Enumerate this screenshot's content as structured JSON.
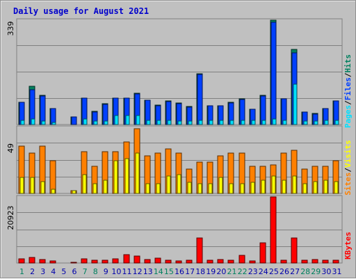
{
  "title": "Daily usage for August 2021",
  "colors": {
    "hits": "#00805f",
    "files": "#0040ff",
    "pages": "#00e0ff",
    "visits": "#ffff00",
    "sites": "#ff8000",
    "kbytes": "#ff0000",
    "weekend": "#00805f",
    "weekday": "#0000aa",
    "separator": "#000000",
    "panel": "#c0c0c0",
    "gridline": "#808080"
  },
  "chart_data": [
    {
      "type": "bar",
      "panel": "hits_files_pages",
      "ymax_label": "339",
      "ylim": [
        0,
        339
      ],
      "legend": [
        "Pages",
        "Files",
        "Hits"
      ],
      "legend_separator": "/",
      "categories": [
        "1",
        "2",
        "3",
        "4",
        "5",
        "6",
        "7",
        "8",
        "9",
        "10",
        "11",
        "12",
        "13",
        "14",
        "15",
        "16",
        "17",
        "18",
        "19",
        "20",
        "21",
        "22",
        "23",
        "24",
        "25",
        "26",
        "27",
        "28",
        "29",
        "30",
        "31"
      ],
      "series": [
        {
          "name": "Hits",
          "values": [
            73,
            124,
            94,
            52,
            0,
            24,
            86,
            42,
            67,
            86,
            86,
            101,
            79,
            63,
            76,
            69,
            59,
            165,
            62,
            61,
            72,
            83,
            50,
            94,
            339,
            84,
            243,
            40,
            36,
            52,
            77
          ]
        },
        {
          "name": "Files",
          "values": [
            72,
            113,
            93,
            51,
            0,
            24,
            86,
            41,
            66,
            85,
            85,
            100,
            78,
            62,
            75,
            68,
            57,
            162,
            61,
            60,
            71,
            82,
            49,
            93,
            333,
            83,
            233,
            40,
            35,
            51,
            76
          ]
        },
        {
          "name": "Pages",
          "values": [
            14,
            17,
            12,
            6,
            0,
            0,
            18,
            12,
            12,
            29,
            30,
            30,
            14,
            13,
            14,
            12,
            12,
            14,
            14,
            13,
            14,
            14,
            13,
            14,
            18,
            14,
            130,
            12,
            12,
            14,
            14
          ]
        }
      ]
    },
    {
      "type": "bar",
      "panel": "visits_sites",
      "ymax_label": "49",
      "ylim": [
        0,
        49
      ],
      "legend": [
        "Sites",
        "Visits"
      ],
      "legend_separator": "/",
      "categories": [
        "1",
        "2",
        "3",
        "4",
        "5",
        "6",
        "7",
        "8",
        "9",
        "10",
        "11",
        "12",
        "13",
        "14",
        "15",
        "16",
        "17",
        "18",
        "19",
        "20",
        "21",
        "22",
        "23",
        "24",
        "25",
        "26",
        "27",
        "28",
        "29",
        "30",
        "31"
      ],
      "series": [
        {
          "name": "Sites",
          "values": [
            35,
            30,
            35,
            24,
            0,
            2,
            31,
            20,
            31,
            31,
            38,
            48,
            28,
            30,
            33,
            30,
            18,
            23,
            23,
            28,
            30,
            30,
            20,
            20,
            21,
            30,
            32,
            18,
            20,
            20,
            24
          ]
        },
        {
          "name": "Visits",
          "values": [
            12,
            12,
            9,
            3,
            0,
            2,
            14,
            7,
            10,
            24,
            26,
            30,
            7,
            7,
            13,
            14,
            8,
            7,
            7,
            12,
            7,
            7,
            8,
            10,
            13,
            10,
            13,
            7,
            9,
            10,
            9
          ]
        }
      ]
    },
    {
      "type": "bar",
      "panel": "kbytes",
      "ymax_label": "20923",
      "ylim": [
        0,
        20923
      ],
      "legend": [
        "KBytes"
      ],
      "categories": [
        "1",
        "2",
        "3",
        "4",
        "5",
        "6",
        "7",
        "8",
        "9",
        "10",
        "11",
        "12",
        "13",
        "14",
        "15",
        "16",
        "17",
        "18",
        "19",
        "20",
        "21",
        "22",
        "23",
        "24",
        "25",
        "26",
        "27",
        "28",
        "29",
        "30",
        "31"
      ],
      "series": [
        {
          "name": "KBytes",
          "values": [
            1360,
            1870,
            1020,
            620,
            0,
            110,
            1360,
            850,
            920,
            1410,
            2650,
            2240,
            1140,
            1560,
            920,
            700,
            850,
            7900,
            850,
            1020,
            860,
            2380,
            760,
            6460,
            20923,
            920,
            7830,
            850,
            1020,
            920,
            850
          ]
        }
      ]
    }
  ],
  "days": {
    "labels": [
      "1",
      "2",
      "3",
      "4",
      "5",
      "6",
      "7",
      "8",
      "9",
      "10",
      "11",
      "12",
      "13",
      "14",
      "15",
      "16",
      "17",
      "18",
      "19",
      "20",
      "21",
      "22",
      "23",
      "24",
      "25",
      "26",
      "27",
      "28",
      "29",
      "30",
      "31"
    ],
    "weekend": [
      "1",
      "7",
      "8",
      "14",
      "15",
      "21",
      "22",
      "28",
      "29"
    ]
  }
}
